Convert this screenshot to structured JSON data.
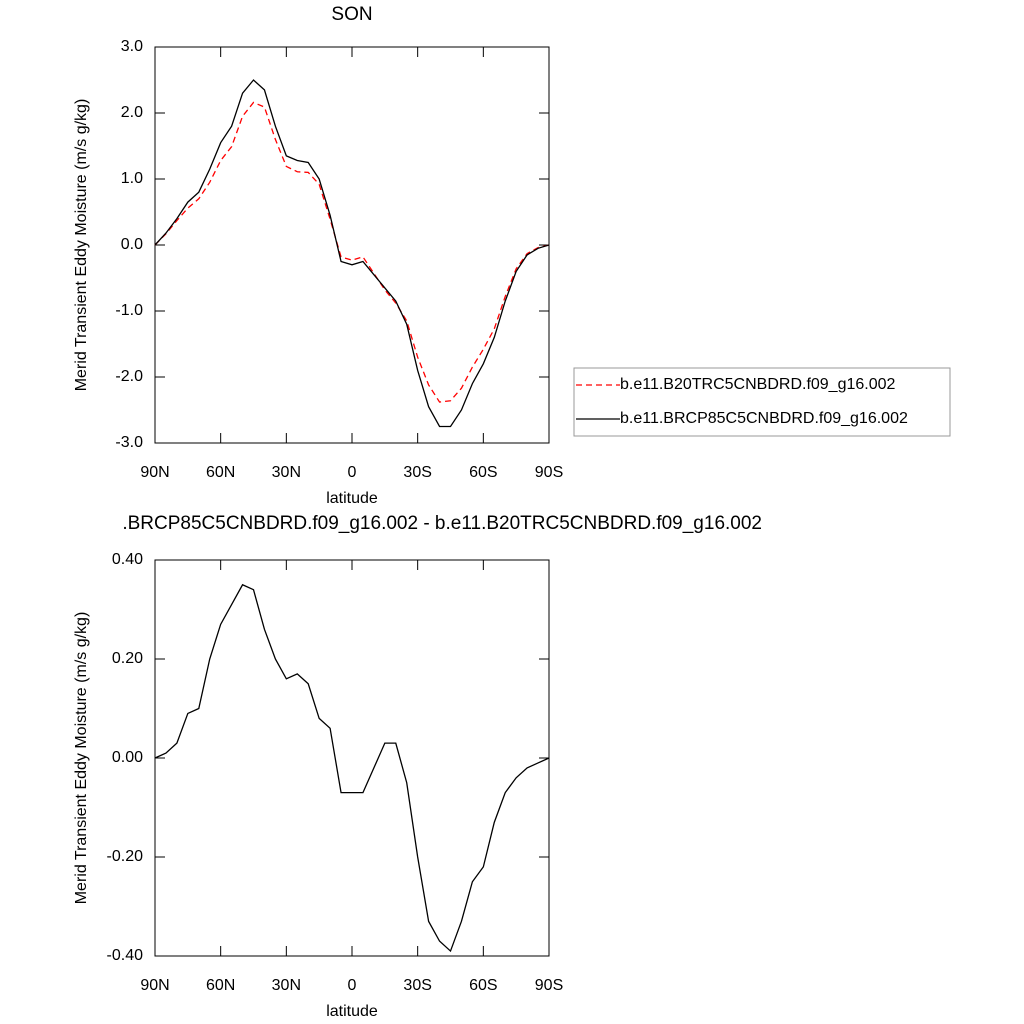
{
  "chart_data": [
    {
      "type": "line",
      "title": "SON",
      "xlabel": "latitude",
      "ylabel": "Merid Transient Eddy Moisture (m/s g/kg)",
      "x": [
        90,
        85,
        80,
        75,
        70,
        65,
        60,
        55,
        50,
        45,
        40,
        35,
        30,
        25,
        20,
        15,
        10,
        5,
        0,
        -5,
        -10,
        -15,
        -20,
        -25,
        -30,
        -35,
        -40,
        -45,
        -50,
        -55,
        -60,
        -65,
        -70,
        -75,
        -80,
        -85,
        -90
      ],
      "xlim": [
        90,
        -90
      ],
      "xticks": [
        {
          "value": 90,
          "label": "90N"
        },
        {
          "value": 60,
          "label": "60N"
        },
        {
          "value": 30,
          "label": "30N"
        },
        0,
        {
          "value": -30,
          "label": "30S"
        },
        {
          "value": -60,
          "label": "60S"
        },
        {
          "value": -90,
          "label": "90S"
        }
      ],
      "ylim": [
        -3,
        3
      ],
      "yticks": [
        {
          "value": 3,
          "label": "3.0"
        },
        {
          "value": 2,
          "label": "2.0"
        },
        {
          "value": 1,
          "label": "1.0"
        },
        {
          "value": 0,
          "label": "0.0"
        },
        {
          "value": -1,
          "label": "-1.0"
        },
        {
          "value": -2,
          "label": "-2.0"
        },
        {
          "value": -3,
          "label": "-3.0"
        }
      ],
      "legend": "right",
      "series": [
        {
          "name": "b.e11.B20TRC5CNBDRD.f09_g16.002",
          "color": "#ff0000",
          "style": "dashed",
          "values": [
            0,
            0.17,
            0.37,
            0.56,
            0.7,
            0.95,
            1.28,
            1.49,
            1.95,
            2.16,
            2.09,
            1.6,
            1.19,
            1.11,
            1.1,
            0.92,
            0.39,
            -0.18,
            -0.23,
            -0.18,
            -0.43,
            -0.68,
            -0.88,
            -1.15,
            -1.7,
            -2.12,
            -2.38,
            -2.36,
            -2.17,
            -1.85,
            -1.58,
            -1.27,
            -0.78,
            -0.36,
            -0.13,
            -0.04,
            0
          ]
        },
        {
          "name": "b.e11.BRCP85C5CNBDRD.f09_g16.002",
          "color": "#000000",
          "style": "solid",
          "values": [
            0,
            0.18,
            0.4,
            0.65,
            0.8,
            1.15,
            1.55,
            1.8,
            2.3,
            2.5,
            2.35,
            1.8,
            1.35,
            1.28,
            1.25,
            1.0,
            0.45,
            -0.25,
            -0.3,
            -0.25,
            -0.45,
            -0.65,
            -0.85,
            -1.2,
            -1.9,
            -2.45,
            -2.75,
            -2.75,
            -2.5,
            -2.1,
            -1.8,
            -1.4,
            -0.85,
            -0.4,
            -0.15,
            -0.05,
            0
          ]
        }
      ]
    },
    {
      "type": "line",
      "title": ".BRCP85C5CNBDRD.f09_g16.002 - b.e11.B20TRC5CNBDRD.f09_g16.002",
      "xlabel": "latitude",
      "ylabel": "Merid Transient Eddy Moisture (m/s g/kg)",
      "x": [
        90,
        85,
        80,
        75,
        70,
        65,
        60,
        55,
        50,
        45,
        40,
        35,
        30,
        25,
        20,
        15,
        10,
        5,
        0,
        -5,
        -10,
        -15,
        -20,
        -25,
        -30,
        -35,
        -40,
        -45,
        -50,
        -55,
        -60,
        -65,
        -70,
        -75,
        -80,
        -85,
        -90
      ],
      "xlim": [
        90,
        -90
      ],
      "xticks": [
        {
          "value": 90,
          "label": "90N"
        },
        {
          "value": 60,
          "label": "60N"
        },
        {
          "value": 30,
          "label": "30N"
        },
        0,
        {
          "value": -30,
          "label": "30S"
        },
        {
          "value": -60,
          "label": "60S"
        },
        {
          "value": -90,
          "label": "90S"
        }
      ],
      "ylim": [
        -0.4,
        0.4
      ],
      "yticks": [
        {
          "value": 0.4,
          "label": "0.40"
        },
        {
          "value": 0.2,
          "label": "0.20"
        },
        {
          "value": 0,
          "label": "0.00"
        },
        {
          "value": -0.2,
          "label": "-0.20"
        },
        {
          "value": -0.4,
          "label": "-0.40"
        }
      ],
      "series": [
        {
          "color": "#000000",
          "style": "solid",
          "values": [
            0,
            0.01,
            0.03,
            0.09,
            0.1,
            0.2,
            0.27,
            0.31,
            0.35,
            0.34,
            0.26,
            0.2,
            0.16,
            0.17,
            0.15,
            0.08,
            0.06,
            -0.07,
            -0.07,
            -0.07,
            -0.02,
            0.03,
            0.03,
            -0.05,
            -0.2,
            -0.33,
            -0.37,
            -0.39,
            -0.33,
            -0.25,
            -0.22,
            -0.13,
            -0.07,
            -0.04,
            -0.02,
            -0.01,
            0
          ]
        }
      ]
    }
  ]
}
